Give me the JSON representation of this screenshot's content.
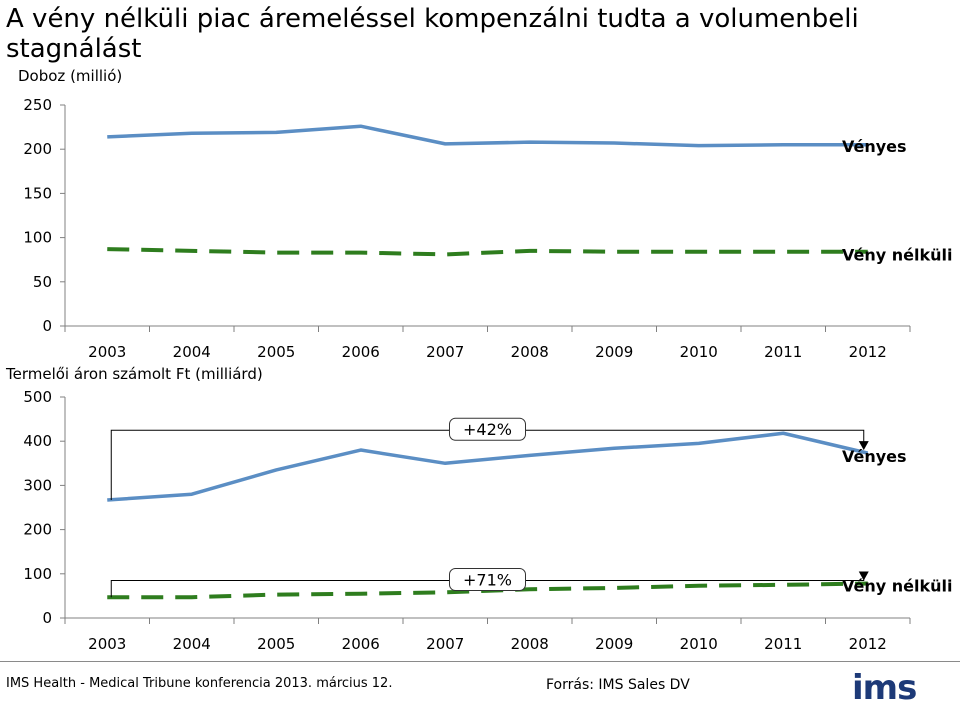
{
  "title": "A vény nélküli piac áremeléssel kompenzálni tudta a volumenbeli stagnálást",
  "footer": {
    "conference": "IMS Health - Medical Tribune konferencia 2013. március 12.",
    "source": "Forrás: IMS Sales DV",
    "logo": "ims"
  },
  "colors": {
    "prescription": "#5b8ec4",
    "otc": "#2e7d1e"
  },
  "chart_data": [
    {
      "type": "line",
      "ylabel": "Doboz (millió)",
      "ylim": [
        0,
        250
      ],
      "yticks": [
        0,
        50,
        100,
        150,
        200,
        250
      ],
      "categories": [
        "2003",
        "2004",
        "2005",
        "2006",
        "2007",
        "2008",
        "2009",
        "2010",
        "2011",
        "2012"
      ],
      "series": [
        {
          "name": "Vényes",
          "style": "solid",
          "values": [
            214,
            218,
            219,
            226,
            206,
            208,
            207,
            204,
            205,
            205
          ]
        },
        {
          "name": "Vény nélküli",
          "style": "dashed",
          "values": [
            87,
            85,
            83,
            83,
            81,
            85,
            84,
            84,
            84,
            84
          ]
        }
      ],
      "grid": false
    },
    {
      "type": "line",
      "ylabel": "Termelői áron számolt Ft (milliárd)",
      "ylim": [
        0,
        500
      ],
      "yticks": [
        0,
        100,
        200,
        300,
        400,
        500
      ],
      "categories": [
        "2003",
        "2004",
        "2005",
        "2006",
        "2007",
        "2008",
        "2009",
        "2010",
        "2011",
        "2012"
      ],
      "series": [
        {
          "name": "Vényes",
          "style": "solid",
          "values": [
            267,
            280,
            335,
            380,
            350,
            368,
            384,
            395,
            418,
            373
          ]
        },
        {
          "name": "Vény nélküli",
          "style": "dashed",
          "values": [
            47,
            47,
            53,
            55,
            58,
            65,
            68,
            73,
            75,
            78
          ]
        }
      ],
      "annotations": [
        {
          "text": "+42%",
          "series": "Vényes"
        },
        {
          "text": "+71%",
          "series": "Vény nélküli"
        }
      ],
      "grid": false
    }
  ]
}
